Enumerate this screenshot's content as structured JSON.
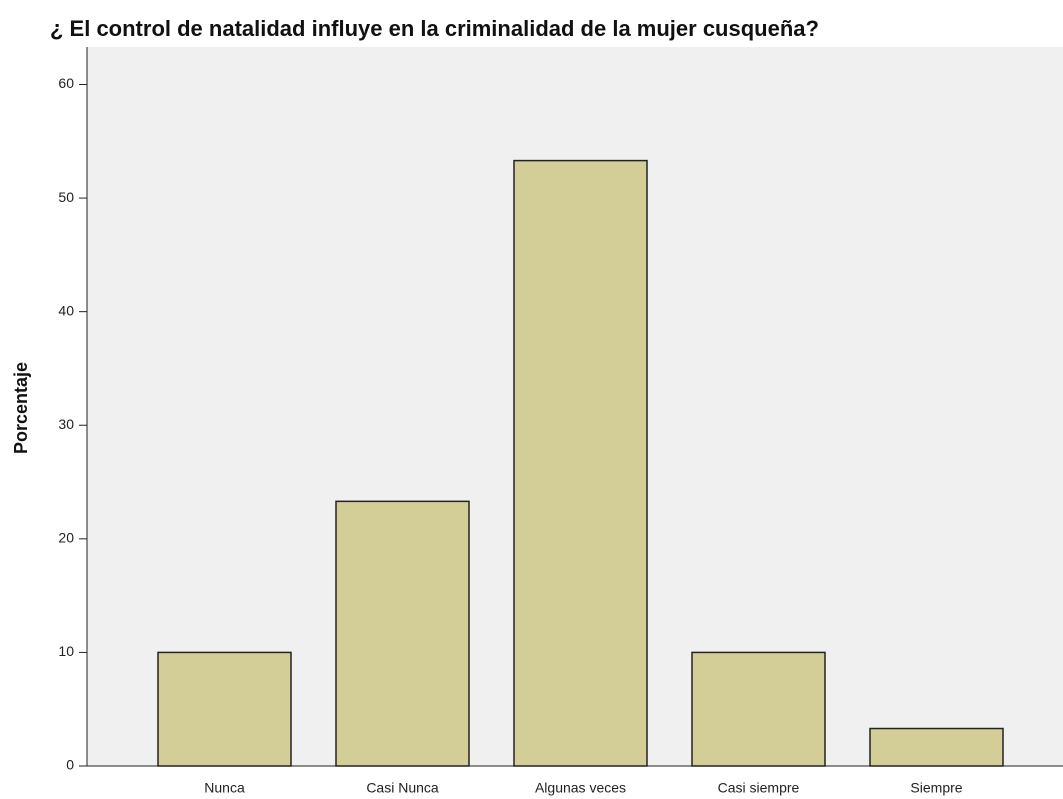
{
  "chart_data": {
    "type": "bar",
    "title": "¿ El control de natalidad influye en la criminalidad de la mujer cusqueña?",
    "y_label": "Porcentaje",
    "categories": [
      "Nunca",
      "Casi Nunca",
      "Algunas veces",
      "Casi siempre",
      "Siempre"
    ],
    "values": [
      10.0,
      23.3,
      53.3,
      10.0,
      3.3
    ],
    "color": "#d3ce97",
    "ylim": [
      0,
      63.3
    ],
    "yticks": [
      0,
      10,
      20,
      30,
      40,
      50,
      60
    ],
    "grid": false
  }
}
